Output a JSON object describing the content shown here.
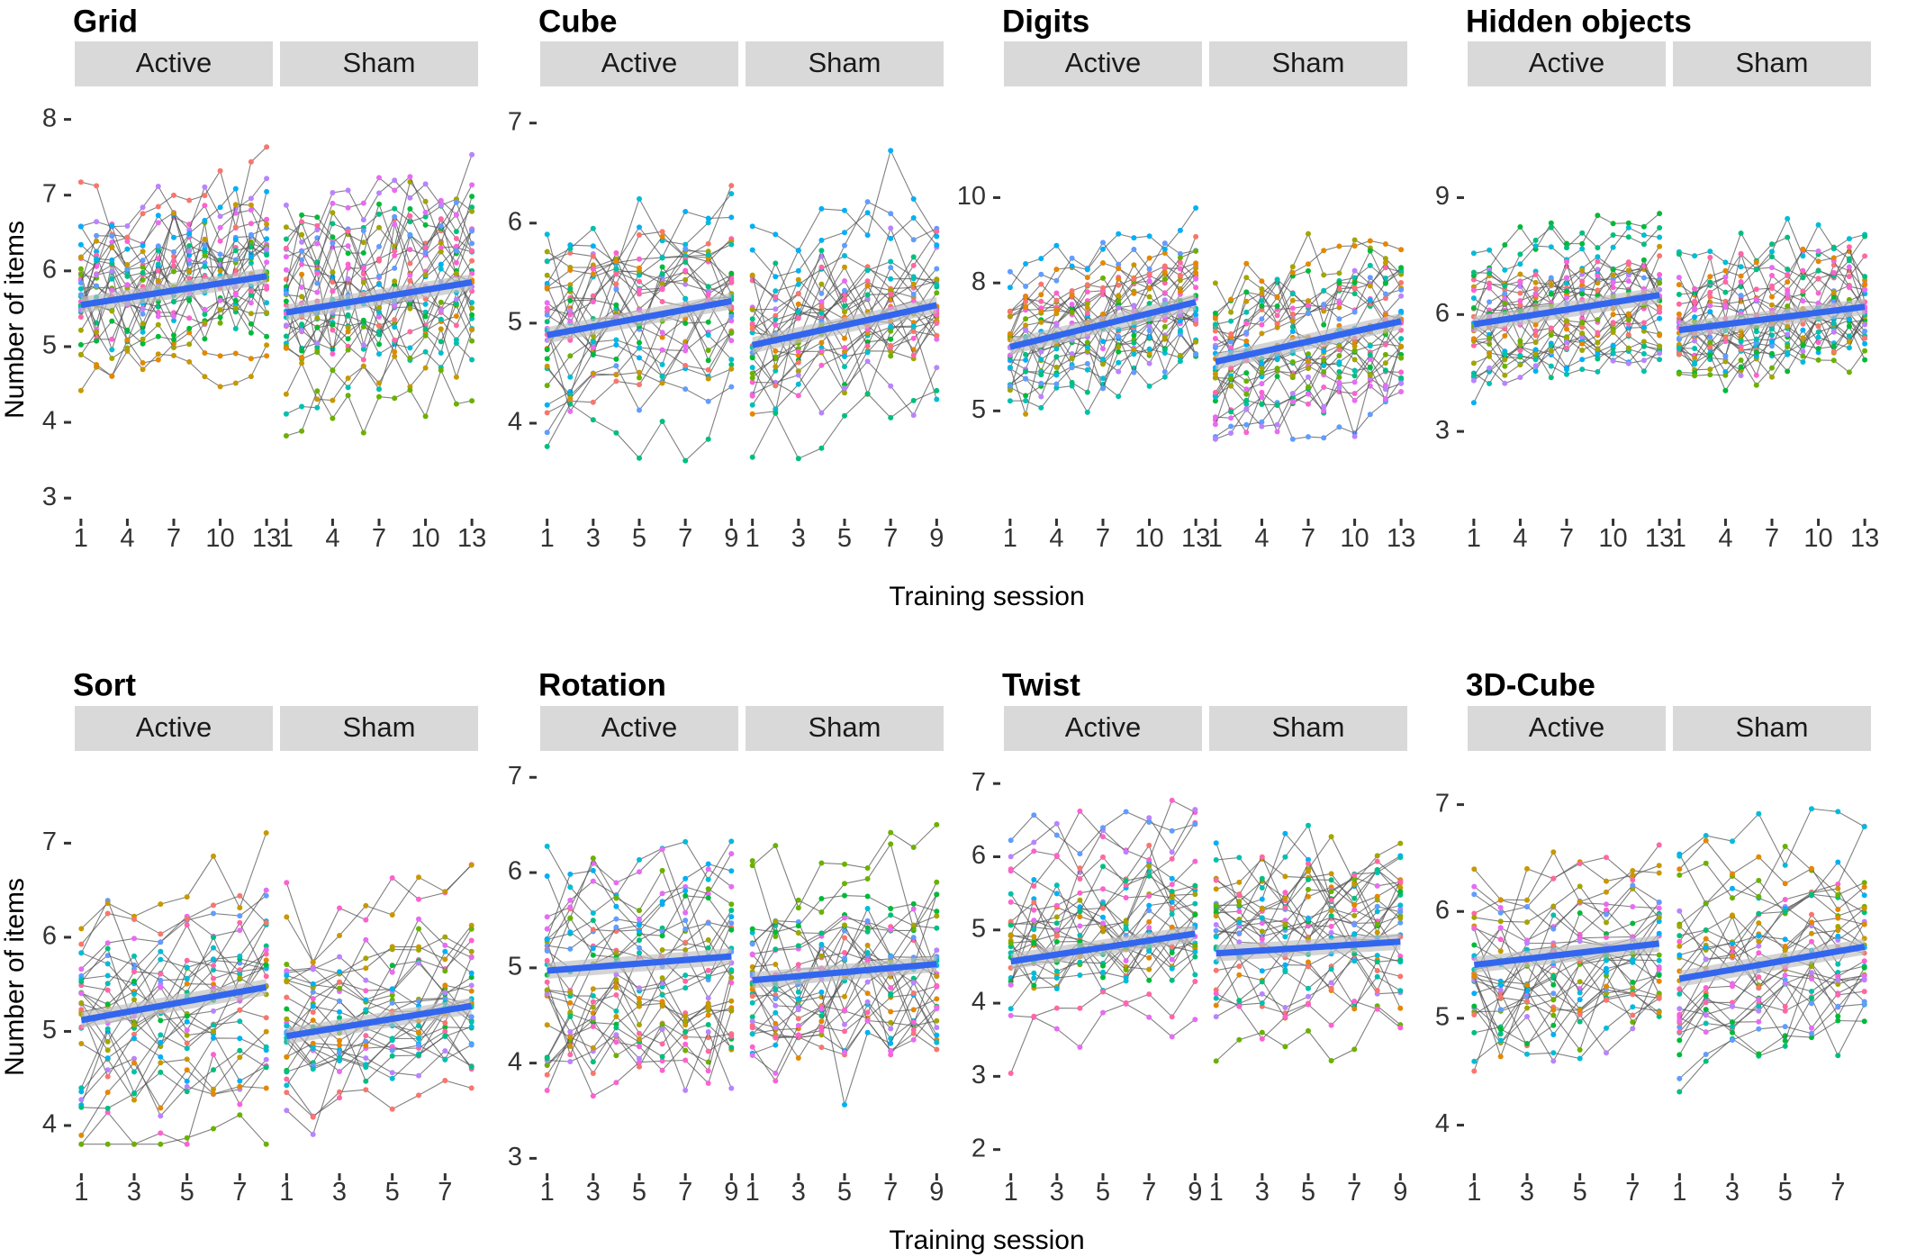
{
  "figure": {
    "x_axis_title": "Training session",
    "y_axis_title": "Number of items",
    "colors": {
      "trend_line": "#3366ee",
      "confidence_band": "#bdbdbd",
      "subject_line": "#555555",
      "strip_fill": "#d9d9d9",
      "subject_palette": [
        "#f8766d",
        "#e58700",
        "#c99800",
        "#a3a500",
        "#6bb100",
        "#00ba38",
        "#00bf7d",
        "#00c0af",
        "#00bcd8",
        "#00b0f6",
        "#619cff",
        "#b983ff",
        "#e76bf3",
        "#fd61d1",
        "#ff67a4"
      ]
    }
  },
  "chart_data": [
    {
      "type": "line",
      "title": "Grid",
      "ylabel": "Number of items",
      "xlabel": "Training session",
      "y_ticks": [
        3,
        4,
        5,
        6,
        7,
        8
      ],
      "ylim": [
        2.8,
        8.15
      ],
      "facets": [
        {
          "label": "Active",
          "x_ticks": [
            1,
            4,
            7,
            10,
            13
          ],
          "xlim": [
            0.6,
            13.4
          ],
          "n_sessions": 13,
          "trend": {
            "start": 5.55,
            "end": 5.93
          },
          "subjects": 28,
          "spread": 0.45
        },
        {
          "label": "Sham",
          "x_ticks": [
            1,
            4,
            7,
            10,
            13
          ],
          "xlim": [
            0.6,
            13.4
          ],
          "n_sessions": 13,
          "trend": {
            "start": 5.45,
            "end": 5.85
          },
          "subjects": 28,
          "spread": 0.45
        }
      ]
    },
    {
      "type": "line",
      "title": "Cube",
      "ylabel": "",
      "xlabel": "Training session",
      "y_ticks": [
        4,
        5,
        6,
        7
      ],
      "ylim": [
        3.1,
        7.15
      ],
      "facets": [
        {
          "label": "Active",
          "x_ticks": [
            1,
            3,
            5,
            7,
            9
          ],
          "xlim": [
            0.7,
            9.3
          ],
          "n_sessions": 9,
          "trend": {
            "start": 4.88,
            "end": 5.22
          },
          "subjects": 28,
          "spread": 0.4
        },
        {
          "label": "Sham",
          "x_ticks": [
            1,
            3,
            5,
            7,
            9
          ],
          "xlim": [
            0.7,
            9.3
          ],
          "n_sessions": 9,
          "trend": {
            "start": 4.78,
            "end": 5.18
          },
          "subjects": 28,
          "spread": 0.4
        }
      ]
    },
    {
      "type": "line",
      "title": "Digits",
      "ylabel": "",
      "xlabel": "Training session",
      "y_ticks": [
        5,
        8,
        10
      ],
      "ylim": [
        2.6,
        12.1
      ],
      "facets": [
        {
          "label": "Active",
          "x_ticks": [
            1,
            4,
            7,
            10,
            13
          ],
          "xlim": [
            0.6,
            13.4
          ],
          "n_sessions": 13,
          "trend": {
            "start": 6.5,
            "end": 7.55
          },
          "subjects": 28,
          "spread": 0.6
        },
        {
          "label": "Sham",
          "x_ticks": [
            1,
            4,
            7,
            10,
            13
          ],
          "xlim": [
            0.6,
            13.4
          ],
          "n_sessions": 13,
          "trend": {
            "start": 6.15,
            "end": 7.1
          },
          "subjects": 28,
          "spread": 0.6
        }
      ]
    },
    {
      "type": "line",
      "title": "Hidden objects",
      "ylabel": "",
      "xlabel": "Training session",
      "y_ticks": [
        3,
        6,
        9
      ],
      "ylim": [
        0.9,
        11.3
      ],
      "facets": [
        {
          "label": "Active",
          "x_ticks": [
            1,
            4,
            7,
            10,
            13
          ],
          "xlim": [
            0.6,
            13.4
          ],
          "n_sessions": 13,
          "trend": {
            "start": 5.75,
            "end": 6.5
          },
          "subjects": 28,
          "spread": 0.6
        },
        {
          "label": "Sham",
          "x_ticks": [
            1,
            4,
            7,
            10,
            13
          ],
          "xlim": [
            0.6,
            13.4
          ],
          "n_sessions": 13,
          "trend": {
            "start": 5.6,
            "end": 6.2
          },
          "subjects": 28,
          "spread": 0.6
        }
      ]
    },
    {
      "type": "line",
      "title": "Sort",
      "ylabel": "Number of items",
      "xlabel": "Training session",
      "y_ticks": [
        4,
        5,
        6,
        7
      ],
      "ylim": [
        3.55,
        7.75
      ],
      "facets": [
        {
          "label": "Active",
          "x_ticks": [
            1,
            3,
            5,
            7
          ],
          "xlim": [
            0.75,
            8.25
          ],
          "n_sessions": 8,
          "trend": {
            "start": 5.12,
            "end": 5.47
          },
          "subjects": 28,
          "spread": 0.4
        },
        {
          "label": "Sham",
          "x_ticks": [
            1,
            3,
            5,
            7
          ],
          "xlim": [
            0.75,
            8.25
          ],
          "n_sessions": 8,
          "trend": {
            "start": 4.95,
            "end": 5.27
          },
          "subjects": 28,
          "spread": 0.4
        }
      ]
    },
    {
      "type": "line",
      "title": "Rotation",
      "ylabel": "",
      "xlabel": "Training session",
      "y_ticks": [
        3,
        4,
        5,
        6,
        7
      ],
      "ylim": [
        2.9,
        7.05
      ],
      "facets": [
        {
          "label": "Active",
          "x_ticks": [
            1,
            3,
            5,
            7,
            9
          ],
          "xlim": [
            0.7,
            9.3
          ],
          "n_sessions": 9,
          "trend": {
            "start": 4.97,
            "end": 5.12
          },
          "subjects": 28,
          "spread": 0.45
        },
        {
          "label": "Sham",
          "x_ticks": [
            1,
            3,
            5,
            7,
            9
          ],
          "xlim": [
            0.7,
            9.3
          ],
          "n_sessions": 9,
          "trend": {
            "start": 4.87,
            "end": 5.04
          },
          "subjects": 28,
          "spread": 0.45
        }
      ]
    },
    {
      "type": "line",
      "title": "Twist",
      "ylabel": "",
      "xlabel": "Training session",
      "y_ticks": [
        2,
        3,
        4,
        5,
        6,
        7
      ],
      "ylim": [
        1.75,
        7.15
      ],
      "facets": [
        {
          "label": "Active",
          "x_ticks": [
            1,
            3,
            5,
            7,
            9
          ],
          "xlim": [
            0.7,
            9.3
          ],
          "n_sessions": 9,
          "trend": {
            "start": 4.57,
            "end": 4.95
          },
          "subjects": 28,
          "spread": 0.45
        },
        {
          "label": "Sham",
          "x_ticks": [
            1,
            3,
            5,
            7,
            9
          ],
          "xlim": [
            0.7,
            9.3
          ],
          "n_sessions": 9,
          "trend": {
            "start": 4.68,
            "end": 4.84
          },
          "subjects": 28,
          "spread": 0.45
        }
      ]
    },
    {
      "type": "line",
      "title": "3D-Cube",
      "ylabel": "",
      "xlabel": "Training session",
      "y_ticks": [
        4,
        5,
        6,
        7
      ],
      "ylim": [
        3.6,
        7.3
      ],
      "facets": [
        {
          "label": "Active",
          "x_ticks": [
            1,
            3,
            5,
            7
          ],
          "xlim": [
            0.75,
            8.25
          ],
          "n_sessions": 8,
          "trend": {
            "start": 5.5,
            "end": 5.7
          },
          "subjects": 28,
          "spread": 0.35
        },
        {
          "label": "Sham",
          "x_ticks": [
            1,
            3,
            5,
            7
          ],
          "xlim": [
            0.75,
            8.25
          ],
          "n_sessions": 8,
          "trend": {
            "start": 5.37,
            "end": 5.67
          },
          "subjects": 28,
          "spread": 0.35
        }
      ]
    }
  ]
}
